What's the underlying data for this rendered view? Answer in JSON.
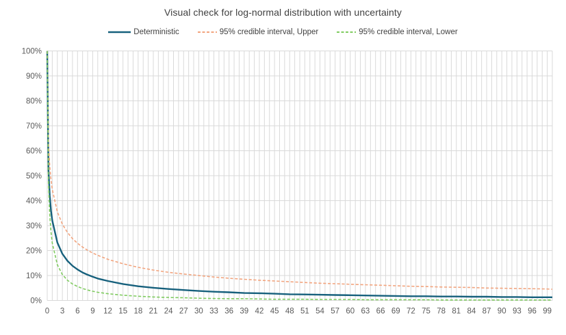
{
  "chart_data": {
    "type": "line",
    "title": "Visual check for log-normal distribution with uncertainty",
    "xlabel": "",
    "ylabel": "",
    "xlim": [
      0,
      100
    ],
    "ylim": [
      0,
      100
    ],
    "grid": {
      "vertical_step_x": 1,
      "horizontal_step_pct": 10,
      "gridlines_on": true
    },
    "legend_position": "top",
    "y_tick_labels": [
      "0%",
      "10%",
      "20%",
      "30%",
      "40%",
      "50%",
      "60%",
      "70%",
      "80%",
      "90%",
      "100%"
    ],
    "x_tick_labels": [
      "0",
      "3",
      "6",
      "9",
      "12",
      "15",
      "18",
      "21",
      "24",
      "27",
      "30",
      "33",
      "36",
      "39",
      "42",
      "45",
      "48",
      "51",
      "54",
      "57",
      "60",
      "63",
      "66",
      "69",
      "72",
      "75",
      "78",
      "81",
      "84",
      "87",
      "90",
      "93",
      "96",
      "99"
    ],
    "x": [
      0,
      0.25,
      0.5,
      0.75,
      1,
      2,
      3,
      4,
      5,
      6,
      7,
      8,
      9,
      10,
      12,
      15,
      18,
      21,
      24,
      27,
      30,
      33,
      36,
      39,
      42,
      45,
      48,
      51,
      54,
      57,
      60,
      63,
      66,
      69,
      72,
      75,
      78,
      81,
      84,
      87,
      90,
      93,
      96,
      99,
      100
    ],
    "series": [
      {
        "name": "Deterministic",
        "color": "#16607C",
        "line_style": "solid",
        "line_width": 2.4,
        "values_pct": [
          100,
          52.5,
          42.0,
          36.0,
          32.0,
          23.2,
          18.7,
          15.9,
          13.9,
          12.4,
          11.2,
          10.3,
          9.5,
          8.8,
          7.8,
          6.6,
          5.7,
          5.1,
          4.6,
          4.2,
          3.8,
          3.5,
          3.3,
          3.0,
          2.9,
          2.7,
          2.5,
          2.4,
          2.3,
          2.2,
          2.1,
          2.0,
          1.9,
          1.8,
          1.7,
          1.7,
          1.6,
          1.6,
          1.5,
          1.5,
          1.4,
          1.4,
          1.3,
          1.3,
          1.3
        ]
      },
      {
        "name": "95% credible interval, Upper",
        "color": "#F2A47E",
        "line_style": "dashed",
        "line_width": 1.6,
        "values_pct": [
          100,
          62.9,
          53.8,
          48.4,
          44.5,
          35.5,
          30.6,
          27.3,
          24.8,
          22.9,
          21.4,
          20.1,
          19.0,
          18.1,
          16.5,
          14.7,
          13.3,
          12.2,
          11.3,
          10.6,
          10.0,
          9.4,
          8.9,
          8.5,
          8.1,
          7.8,
          7.5,
          7.2,
          6.9,
          6.7,
          6.5,
          6.3,
          6.1,
          5.9,
          5.7,
          5.6,
          5.4,
          5.3,
          5.2,
          5.0,
          4.9,
          4.8,
          4.7,
          4.6,
          4.5
        ]
      },
      {
        "name": "95% credible interval, Lower",
        "color": "#7FCB5F",
        "line_style": "dashed",
        "line_width": 1.6,
        "values_pct": [
          100,
          46.9,
          34.2,
          27.4,
          23.0,
          14.3,
          10.4,
          8.1,
          6.6,
          5.6,
          4.8,
          4.2,
          3.7,
          3.3,
          2.7,
          2.1,
          1.7,
          1.4,
          1.2,
          1.1,
          0.9,
          0.8,
          0.7,
          0.7,
          0.6,
          0.5,
          0.5,
          0.5,
          0.4,
          0.4,
          0.4,
          0.3,
          0.3,
          0.3,
          0.3,
          0.3,
          0.2,
          0.2,
          0.2,
          0.2,
          0.2,
          0.2,
          0.2,
          0.2,
          0.2
        ]
      }
    ],
    "colors": {
      "background": "#FFFFFF",
      "title_text": "#404040",
      "legend_text": "#404040",
      "axis_label_text": "#595959",
      "gridline": "#D9D9D9"
    }
  }
}
